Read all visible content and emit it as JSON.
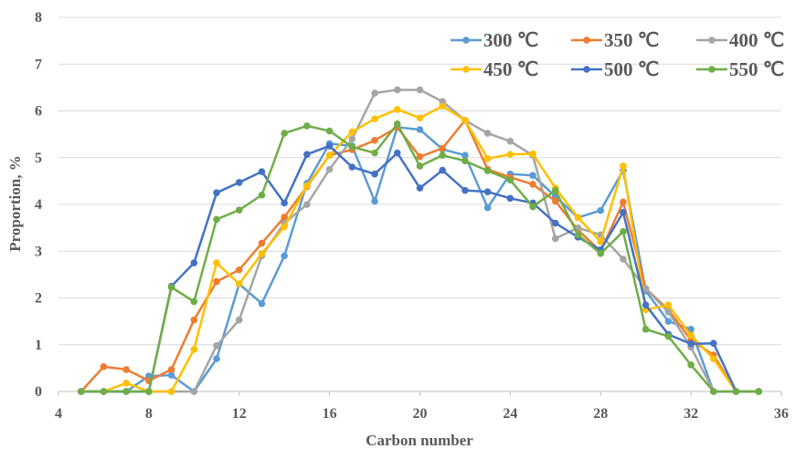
{
  "chart_data": {
    "type": "line",
    "title": "",
    "xlabel": "Carbon number",
    "ylabel": "Proportion, %",
    "xlim": [
      4,
      36
    ],
    "ylim": [
      0,
      8
    ],
    "xticks": [
      4,
      8,
      12,
      16,
      20,
      24,
      28,
      32,
      36
    ],
    "yticks": [
      0,
      1,
      2,
      3,
      4,
      5,
      6,
      7,
      8
    ],
    "grid": "horizontal",
    "legend": "top-right",
    "x": [
      5,
      6,
      7,
      8,
      9,
      10,
      11,
      12,
      13,
      14,
      15,
      16,
      17,
      18,
      19,
      20,
      21,
      22,
      23,
      24,
      25,
      26,
      27,
      28,
      29,
      30,
      31,
      32,
      33,
      34,
      35
    ],
    "series": [
      {
        "name": "300 ℃",
        "color": "#5B9BD5",
        "values": [
          0,
          0,
          0,
          0.33,
          0.35,
          0,
          0.7,
          2.3,
          1.88,
          2.9,
          4.45,
          5.3,
          5.25,
          4.07,
          5.65,
          5.6,
          5.18,
          5.05,
          3.93,
          4.65,
          4.62,
          4.17,
          3.72,
          3.87,
          4.73,
          2.15,
          1.5,
          1.33,
          0,
          0,
          0
        ]
      },
      {
        "name": "350 ℃",
        "color": "#ED7D31",
        "values": [
          0,
          0.53,
          0.47,
          0.23,
          0.47,
          1.53,
          2.35,
          2.6,
          3.17,
          3.73,
          4.38,
          5.05,
          5.17,
          5.37,
          5.65,
          5.02,
          5.2,
          5.8,
          4.75,
          4.58,
          4.43,
          4.07,
          3.45,
          3.0,
          4.05,
          2.2,
          1.75,
          1.1,
          0.78,
          0,
          0
        ]
      },
      {
        "name": "400 ℃",
        "color": "#A5A5A5",
        "values": [
          0,
          0,
          0,
          0,
          0,
          0,
          0.98,
          1.53,
          2.9,
          3.6,
          4.0,
          4.75,
          5.4,
          6.38,
          6.45,
          6.45,
          6.2,
          5.8,
          5.52,
          5.35,
          5.05,
          3.27,
          3.5,
          3.35,
          2.83,
          2.2,
          1.7,
          0.95,
          0,
          0,
          0
        ]
      },
      {
        "name": "450 ℃",
        "color": "#FFC000",
        "values": [
          0,
          0,
          0.18,
          0,
          0,
          0.9,
          2.75,
          2.3,
          2.95,
          3.52,
          4.4,
          5.05,
          5.55,
          5.83,
          6.03,
          5.85,
          6.1,
          5.8,
          4.98,
          5.07,
          5.08,
          4.35,
          3.72,
          3.2,
          4.82,
          1.75,
          1.85,
          1.2,
          0.7,
          0,
          0
        ]
      },
      {
        "name": "500 ℃",
        "color": "#4472C4",
        "values": [
          0,
          0,
          0,
          0,
          2.25,
          2.75,
          4.25,
          4.47,
          4.7,
          4.03,
          5.07,
          5.25,
          4.8,
          4.65,
          5.1,
          4.35,
          4.73,
          4.3,
          4.27,
          4.13,
          4.03,
          3.6,
          3.3,
          3.03,
          3.83,
          1.85,
          1.22,
          1.02,
          1.03,
          0,
          0
        ]
      },
      {
        "name": "550 ℃",
        "color": "#70AD47",
        "values": [
          0,
          0,
          0,
          0,
          2.23,
          1.92,
          3.68,
          3.88,
          4.2,
          5.52,
          5.68,
          5.57,
          5.23,
          5.1,
          5.72,
          4.82,
          5.05,
          4.93,
          4.72,
          4.52,
          3.95,
          4.3,
          3.35,
          2.95,
          3.42,
          1.33,
          1.18,
          0.57,
          0,
          0,
          0
        ]
      }
    ]
  }
}
